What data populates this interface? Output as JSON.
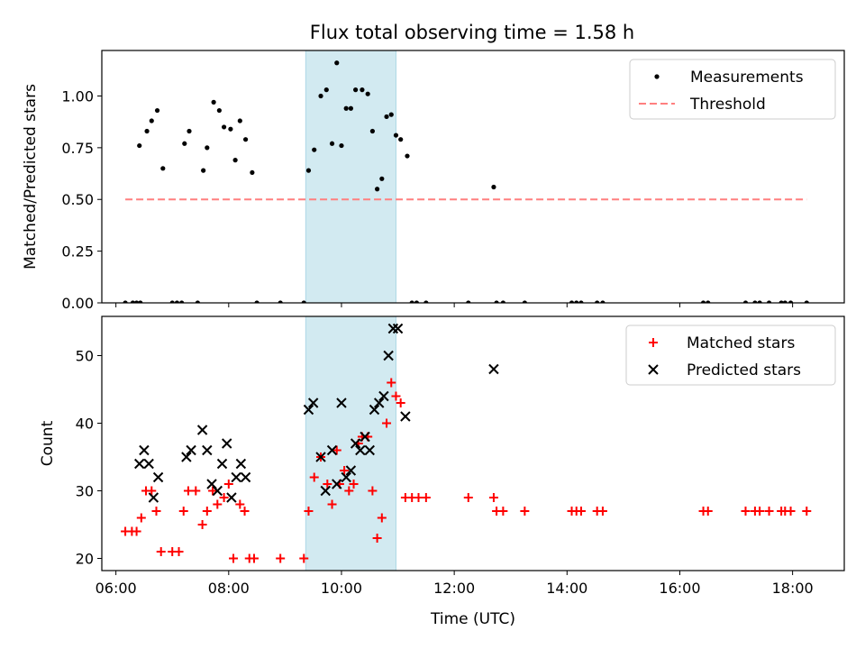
{
  "title": "Flux total observing time = 1.58 h",
  "chart_data": [
    {
      "panel": "top",
      "type": "scatter",
      "ylabel": "Matched/Predicted stars",
      "xlabel": "",
      "xlim": [
        "05:45",
        "18:55"
      ],
      "ylim": [
        0.0,
        1.22
      ],
      "yticks": [
        0.0,
        0.25,
        0.5,
        0.75,
        1.0
      ],
      "ytick_labels": [
        "0.00",
        "0.25",
        "0.50",
        "0.75",
        "1.00"
      ],
      "shaded_span": {
        "x": [
          "09:22",
          "10:58"
        ],
        "color": "#add8e6"
      },
      "legend": {
        "position": "top-right",
        "entries": [
          "Measurements",
          "Threshold"
        ]
      },
      "series": [
        {
          "name": "Measurements",
          "color": "#000000",
          "marker": "dot",
          "points": [
            [
              "06:10",
              0.0
            ],
            [
              "06:18",
              0.0
            ],
            [
              "06:22",
              0.0
            ],
            [
              "06:26",
              0.0
            ],
            [
              "06:25",
              0.76
            ],
            [
              "06:33",
              0.83
            ],
            [
              "06:38",
              0.88
            ],
            [
              "06:44",
              0.93
            ],
            [
              "06:50",
              0.65
            ],
            [
              "07:00",
              0.0
            ],
            [
              "07:05",
              0.0
            ],
            [
              "07:10",
              0.0
            ],
            [
              "07:13",
              0.77
            ],
            [
              "07:18",
              0.83
            ],
            [
              "07:27",
              0.0
            ],
            [
              "07:33",
              0.64
            ],
            [
              "07:37",
              0.75
            ],
            [
              "07:44",
              0.97
            ],
            [
              "07:50",
              0.93
            ],
            [
              "07:55",
              0.85
            ],
            [
              "08:02",
              0.84
            ],
            [
              "08:07",
              0.69
            ],
            [
              "08:12",
              0.88
            ],
            [
              "08:18",
              0.79
            ],
            [
              "08:25",
              0.63
            ],
            [
              "08:30",
              0.0
            ],
            [
              "08:55",
              0.0
            ],
            [
              "09:20",
              0.0
            ],
            [
              "09:25",
              0.64
            ],
            [
              "09:31",
              0.74
            ],
            [
              "09:38",
              1.0
            ],
            [
              "09:44",
              1.03
            ],
            [
              "09:50",
              0.77
            ],
            [
              "09:55",
              1.16
            ],
            [
              "10:00",
              0.76
            ],
            [
              "10:05",
              0.94
            ],
            [
              "10:10",
              0.94
            ],
            [
              "10:15",
              1.03
            ],
            [
              "10:22",
              1.03
            ],
            [
              "10:28",
              1.01
            ],
            [
              "10:33",
              0.83
            ],
            [
              "10:38",
              0.55
            ],
            [
              "10:43",
              0.6
            ],
            [
              "10:48",
              0.9
            ],
            [
              "10:53",
              0.91
            ],
            [
              "10:58",
              0.81
            ],
            [
              "11:03",
              0.79
            ],
            [
              "11:10",
              0.71
            ],
            [
              "11:15",
              0.0
            ],
            [
              "11:20",
              0.0
            ],
            [
              "11:30",
              0.0
            ],
            [
              "12:15",
              0.0
            ],
            [
              "12:42",
              0.56
            ],
            [
              "12:45",
              0.0
            ],
            [
              "12:52",
              0.0
            ],
            [
              "13:15",
              0.0
            ],
            [
              "14:05",
              0.0
            ],
            [
              "14:10",
              0.0
            ],
            [
              "14:15",
              0.0
            ],
            [
              "14:32",
              0.0
            ],
            [
              "14:38",
              0.0
            ],
            [
              "16:25",
              0.0
            ],
            [
              "16:30",
              0.0
            ],
            [
              "17:10",
              0.0
            ],
            [
              "17:20",
              0.0
            ],
            [
              "17:25",
              0.0
            ],
            [
              "17:35",
              0.0
            ],
            [
              "17:48",
              0.0
            ],
            [
              "17:52",
              0.0
            ],
            [
              "17:58",
              0.0
            ],
            [
              "18:15",
              0.0
            ]
          ]
        },
        {
          "name": "Threshold",
          "color": "#ff7f7f",
          "style": "dashed",
          "points": [
            [
              "06:10",
              0.5
            ],
            [
              "18:15",
              0.5
            ]
          ]
        }
      ]
    },
    {
      "panel": "bottom",
      "type": "scatter",
      "xlabel": "Time (UTC)",
      "ylabel": "Count",
      "xlim": [
        "05:45",
        "18:55"
      ],
      "ylim": [
        18.2,
        55.8
      ],
      "xticks": [
        "06:00",
        "08:00",
        "10:00",
        "12:00",
        "14:00",
        "16:00",
        "18:00"
      ],
      "yticks": [
        20,
        30,
        40,
        50
      ],
      "ytick_labels": [
        "20",
        "30",
        "40",
        "50"
      ],
      "shaded_span": {
        "x": [
          "09:22",
          "10:58"
        ],
        "color": "#add8e6"
      },
      "legend": {
        "position": "top-right",
        "entries": [
          "Matched stars",
          "Predicted stars"
        ]
      },
      "series": [
        {
          "name": "Matched stars",
          "color": "#ff0000",
          "marker": "plus",
          "points": [
            [
              "06:10",
              24
            ],
            [
              "06:17",
              24
            ],
            [
              "06:22",
              24
            ],
            [
              "06:27",
              26
            ],
            [
              "06:32",
              30
            ],
            [
              "06:38",
              30
            ],
            [
              "06:43",
              27
            ],
            [
              "06:48",
              21
            ],
            [
              "07:00",
              21
            ],
            [
              "07:07",
              21
            ],
            [
              "07:12",
              27
            ],
            [
              "07:17",
              30
            ],
            [
              "07:25",
              30
            ],
            [
              "07:32",
              25
            ],
            [
              "07:37",
              27
            ],
            [
              "07:43",
              30
            ],
            [
              "07:48",
              28
            ],
            [
              "07:55",
              29
            ],
            [
              "08:00",
              31
            ],
            [
              "08:05",
              20
            ],
            [
              "08:12",
              28
            ],
            [
              "08:17",
              27
            ],
            [
              "08:22",
              20
            ],
            [
              "08:27",
              20
            ],
            [
              "08:55",
              20
            ],
            [
              "09:20",
              20
            ],
            [
              "09:25",
              27
            ],
            [
              "09:31",
              32
            ],
            [
              "09:38",
              35
            ],
            [
              "09:45",
              31
            ],
            [
              "09:50",
              28
            ],
            [
              "09:55",
              36
            ],
            [
              "09:58",
              31
            ],
            [
              "10:03",
              33
            ],
            [
              "10:08",
              30
            ],
            [
              "10:13",
              31
            ],
            [
              "10:18",
              37
            ],
            [
              "10:22",
              38
            ],
            [
              "10:28",
              38
            ],
            [
              "10:33",
              30
            ],
            [
              "10:38",
              23
            ],
            [
              "10:43",
              26
            ],
            [
              "10:48",
              40
            ],
            [
              "10:53",
              46
            ],
            [
              "10:58",
              44
            ],
            [
              "11:03",
              43
            ],
            [
              "11:08",
              29
            ],
            [
              "11:15",
              29
            ],
            [
              "11:22",
              29
            ],
            [
              "11:30",
              29
            ],
            [
              "12:15",
              29
            ],
            [
              "12:42",
              29
            ],
            [
              "12:45",
              27
            ],
            [
              "12:52",
              27
            ],
            [
              "13:15",
              27
            ],
            [
              "14:05",
              27
            ],
            [
              "14:10",
              27
            ],
            [
              "14:15",
              27
            ],
            [
              "14:32",
              27
            ],
            [
              "14:38",
              27
            ],
            [
              "16:25",
              27
            ],
            [
              "16:30",
              27
            ],
            [
              "17:10",
              27
            ],
            [
              "17:20",
              27
            ],
            [
              "17:25",
              27
            ],
            [
              "17:35",
              27
            ],
            [
              "17:48",
              27
            ],
            [
              "17:52",
              27
            ],
            [
              "17:58",
              27
            ],
            [
              "18:15",
              27
            ]
          ]
        },
        {
          "name": "Predicted stars",
          "color": "#000000",
          "marker": "x",
          "points": [
            [
              "06:25",
              34
            ],
            [
              "06:30",
              36
            ],
            [
              "06:35",
              34
            ],
            [
              "06:40",
              29
            ],
            [
              "06:45",
              32
            ],
            [
              "07:15",
              35
            ],
            [
              "07:20",
              36
            ],
            [
              "07:32",
              39
            ],
            [
              "07:37",
              36
            ],
            [
              "07:42",
              31
            ],
            [
              "07:48",
              30
            ],
            [
              "07:53",
              34
            ],
            [
              "07:58",
              37
            ],
            [
              "08:03",
              29
            ],
            [
              "08:08",
              32
            ],
            [
              "08:13",
              34
            ],
            [
              "08:18",
              32
            ],
            [
              "09:25",
              42
            ],
            [
              "09:30",
              43
            ],
            [
              "09:38",
              35
            ],
            [
              "09:43",
              30
            ],
            [
              "09:50",
              36
            ],
            [
              "09:55",
              31
            ],
            [
              "10:00",
              43
            ],
            [
              "10:05",
              32
            ],
            [
              "10:10",
              33
            ],
            [
              "10:15",
              37
            ],
            [
              "10:20",
              36
            ],
            [
              "10:25",
              38
            ],
            [
              "10:30",
              36
            ],
            [
              "10:35",
              42
            ],
            [
              "10:40",
              43
            ],
            [
              "10:45",
              44
            ],
            [
              "10:50",
              50
            ],
            [
              "10:55",
              54
            ],
            [
              "11:00",
              54
            ],
            [
              "11:08",
              41
            ],
            [
              "12:42",
              48
            ]
          ]
        }
      ]
    }
  ]
}
